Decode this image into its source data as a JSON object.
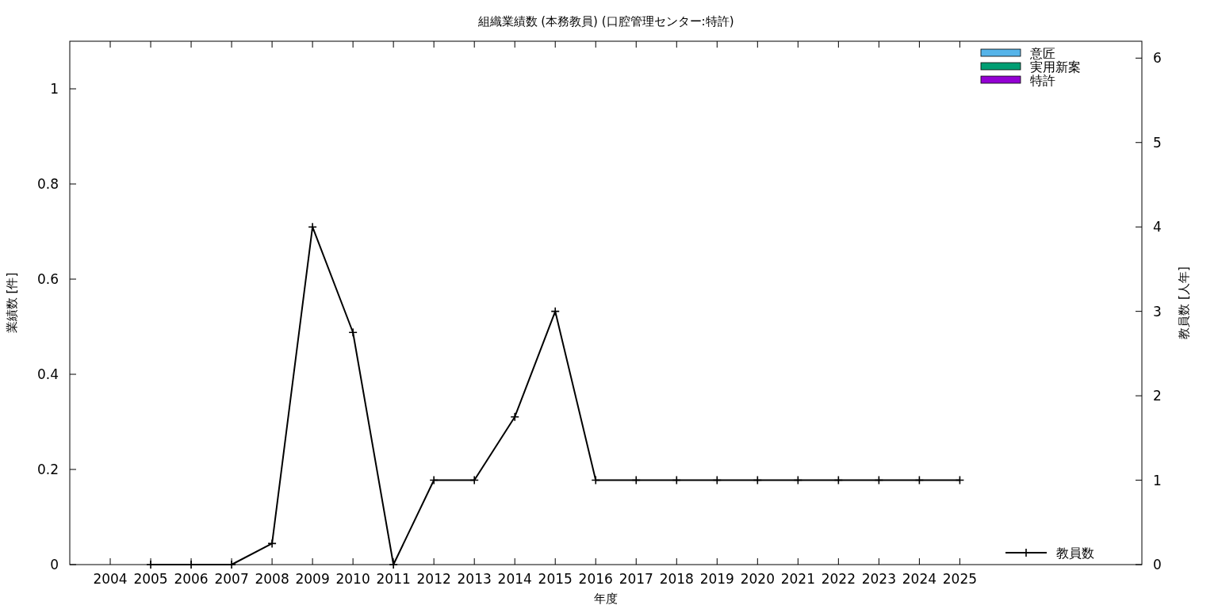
{
  "chart_data": {
    "type": "bar",
    "title": "組織業績数 (本務教員) (口腔管理センター:特許)",
    "xlabel": "年度",
    "ylabel": "業績数 [件]",
    "y2label": "教員数 [人年]",
    "x": [
      2004,
      2005,
      2006,
      2007,
      2008,
      2009,
      2010,
      2011,
      2012,
      2013,
      2014,
      2015,
      2016,
      2017,
      2018,
      2019,
      2020,
      2021,
      2022,
      2023,
      2024,
      2025
    ],
    "xlim": [
      2003,
      2029.5
    ],
    "xticks": [
      2004,
      2005,
      2006,
      2007,
      2008,
      2009,
      2010,
      2011,
      2012,
      2013,
      2014,
      2015,
      2016,
      2017,
      2018,
      2019,
      2020,
      2021,
      2022,
      2023,
      2024,
      2025
    ],
    "ylim": [
      0,
      1.1
    ],
    "yticks": [
      0,
      0.2,
      0.4,
      0.6,
      0.8,
      1
    ],
    "y2lim": [
      0,
      6.2
    ],
    "y2ticks": [
      0,
      1,
      2,
      3,
      4,
      5,
      6
    ],
    "legend": "right",
    "series": [
      {
        "name": "意匠",
        "color": "#56b4e9",
        "values": [
          0,
          0,
          0,
          0,
          0,
          0,
          0,
          0,
          0,
          0,
          0,
          0,
          0,
          0,
          0,
          0,
          0,
          0,
          0,
          0,
          0,
          0
        ]
      },
      {
        "name": "実用新案",
        "color": "#009e73",
        "values": [
          0,
          0,
          0,
          0,
          0,
          0,
          0,
          0,
          0,
          0,
          0,
          0,
          0,
          0,
          0,
          0,
          0,
          0,
          0,
          0,
          0,
          0
        ]
      },
      {
        "name": "特許",
        "color": "#9400d3",
        "values": [
          0,
          0,
          0,
          0,
          0,
          0,
          0,
          0,
          0,
          0,
          0,
          0,
          0,
          0,
          0,
          0,
          0,
          0,
          0,
          0,
          0,
          0
        ]
      },
      {
        "name": "教員数",
        "type": "line",
        "axis": "y2",
        "color": "#000000",
        "marker": "cross",
        "values": [
          null,
          0,
          0,
          0,
          0.25,
          4,
          2.75,
          0,
          1,
          1,
          1.75,
          3,
          1,
          1,
          1,
          1,
          1,
          1,
          1,
          1,
          1,
          1
        ]
      }
    ]
  }
}
